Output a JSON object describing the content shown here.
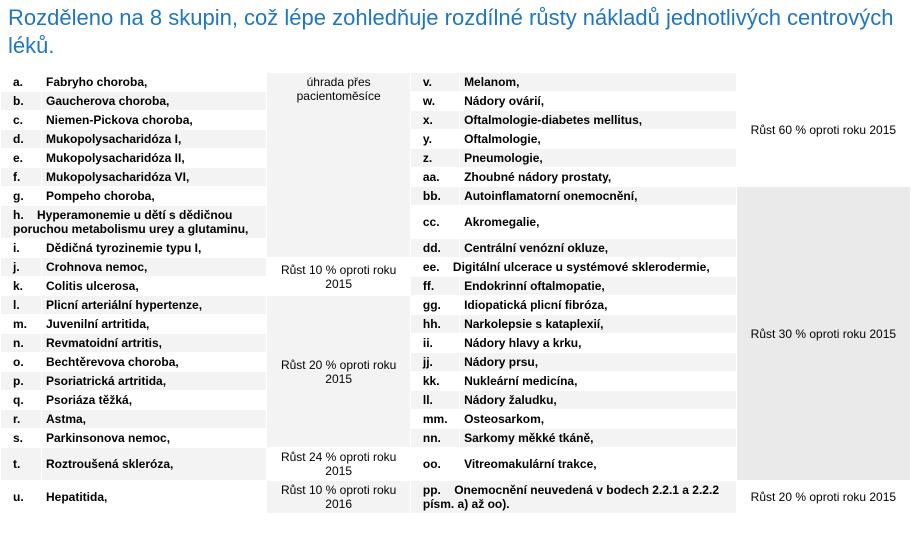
{
  "title": "Rozděleno na 8 skupin, což lépe zohledňuje rozdílné růsty nákladů jednotlivých centrových léků.",
  "rates": {
    "patient_months": "úhrada přes pacientoměsíce",
    "g10_2015": "Růst 10 % oproti roku 2015",
    "g20_2015": "Růst 20 % oproti roku 2015",
    "g24_2015": "Růst 24 % oproti roku 2015",
    "g10_2016": "Růst 10 % oproti roku 2016",
    "g60_2015": "Růst 60 % oproti roku 2015",
    "g30_2015": "Růst 30 % oproti roku 2015",
    "g20_2015b": "Růst 20 % oproti roku 2015"
  },
  "left": {
    "a": {
      "l": "a.",
      "n": "Fabryho choroba,"
    },
    "b": {
      "l": "b.",
      "n": "Gaucherova choroba,"
    },
    "c": {
      "l": "c.",
      "n": "Niemen-Pickova choroba,"
    },
    "d": {
      "l": "d.",
      "n": "Mukopolysacharidóza I,"
    },
    "e": {
      "l": "e.",
      "n": "Mukopolysacharidóza II,"
    },
    "f": {
      "l": "f.",
      "n": "Mukopolysacharidóza VI,"
    },
    "g": {
      "l": "g.",
      "n": "Pompeho choroba,"
    },
    "h": {
      "l": "h.",
      "n": "Hyperamonemie u dětí s dědičnou poruchou metabolismu urey a glutaminu,"
    },
    "i": {
      "l": "i.",
      "n": "Dědičná tyrozinemie typu I,"
    },
    "j": {
      "l": "j.",
      "n": "Crohnova nemoc,"
    },
    "k": {
      "l": "k.",
      "n": "Colitis ulcerosa,"
    },
    "l": {
      "l": "l.",
      "n": "Plicní arteriální hypertenze,"
    },
    "m": {
      "l": "m.",
      "n": "Juvenilní artritida,"
    },
    "n": {
      "l": "n.",
      "n": "Revmatoidní artritis,"
    },
    "o": {
      "l": "o.",
      "n": "Bechtěrevova choroba,"
    },
    "p": {
      "l": "p.",
      "n": "Psoriatrická artritida,"
    },
    "q": {
      "l": "q.",
      "n": "Psoriáza těžká,"
    },
    "r": {
      "l": "r.",
      "n": "Astma,"
    },
    "s": {
      "l": "s.",
      "n": "Parkinsonova nemoc,"
    },
    "t": {
      "l": "t.",
      "n": "Roztroušená skleróza,"
    },
    "u": {
      "l": "u.",
      "n": "Hepatitida,"
    }
  },
  "right": {
    "v": {
      "l": "v.",
      "n": "Melanom,"
    },
    "w": {
      "l": "w.",
      "n": "Nádory ovárií,"
    },
    "x": {
      "l": "x.",
      "n": "Oftalmologie-diabetes mellitus,"
    },
    "y": {
      "l": "y.",
      "n": "Oftalmologie,"
    },
    "z": {
      "l": "z.",
      "n": "Pneumologie,"
    },
    "aa": {
      "l": "aa.",
      "n": "Zhoubné nádory prostaty,"
    },
    "bb": {
      "l": "bb.",
      "n": "Autoinflamatorní onemocnění,"
    },
    "cc": {
      "l": "cc.",
      "n": "Akromegalie,"
    },
    "dd": {
      "l": "dd.",
      "n": "Centrální venózní okluze,"
    },
    "ee": {
      "l": "ee.",
      "n": "Digitální ulcerace u systémové sklerodermie,"
    },
    "ff": {
      "l": "ff.",
      "n": "Endokrinní oftalmopatie,"
    },
    "gg": {
      "l": "gg.",
      "n": "Idiopatická plicní fibróza,"
    },
    "hh": {
      "l": "hh.",
      "n": "Narkolepsie s kataplexií,"
    },
    "ii": {
      "l": "ii.",
      "n": "Nádory hlavy a krku,"
    },
    "jj": {
      "l": "jj.",
      "n": "Nádory prsu,"
    },
    "kk": {
      "l": "kk.",
      "n": "Nukleární medicína,"
    },
    "ll": {
      "l": "ll.",
      "n": "Nádory žaludku,"
    },
    "mm": {
      "l": "mm.",
      "n": "Osteosarkom,"
    },
    "nn": {
      "l": "nn.",
      "n": "Sarkomy měkké tkáně,"
    },
    "oo": {
      "l": "oo.",
      "n": "Vitreomakulární trakce,"
    },
    "pp": {
      "l": "pp.",
      "n": "Onemocnění neuvedená v bodech 2.2.1 a 2.2.2 písm. a) až oo)."
    }
  },
  "colors": {
    "title": "#1f77c0",
    "shade": "#f3f3f3",
    "shade2": "#eaeaea"
  }
}
